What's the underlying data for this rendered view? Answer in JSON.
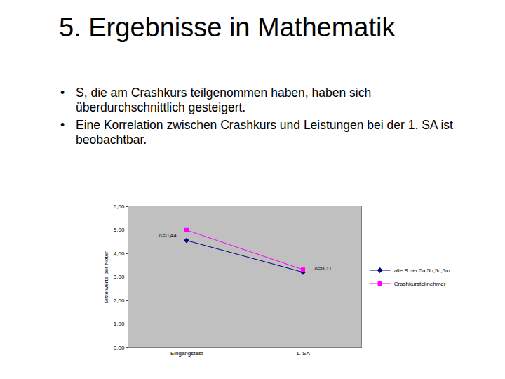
{
  "slide": {
    "title": "5. Ergebnisse in Mathematik",
    "bullets": [
      "S, die am Crashkurs teilgenommen haben, haben sich überdurchschnittlich gesteigert.",
      "Eine Korrelation zwischen Crashkurs und Leistungen bei der 1. SA ist beobachtbar."
    ]
  },
  "chart_data": {
    "type": "line",
    "y_label": "Mittelwerte der Noten",
    "categories": [
      "Eingangstest",
      "1. SA"
    ],
    "series": [
      {
        "name": "alle S der 5a,5b,5c,5m",
        "color": "#000080",
        "marker": "diamond",
        "values": [
          4.55,
          3.2
        ]
      },
      {
        "name": "Crashkursteilnehmer",
        "color": "#ff00ff",
        "marker": "square",
        "values": [
          4.99,
          3.31
        ]
      }
    ],
    "ylim": [
      0,
      6
    ],
    "yticks": [
      {
        "value": 0,
        "label": "0,00"
      },
      {
        "value": 1,
        "label": "1,00"
      },
      {
        "value": 2,
        "label": "2,00"
      },
      {
        "value": 3,
        "label": "3,00"
      },
      {
        "value": 4,
        "label": "4,00"
      },
      {
        "value": 5,
        "label": "5,00"
      },
      {
        "value": 6,
        "label": "6,00"
      }
    ],
    "annotations": [
      {
        "text": "Δ=0,44",
        "x": "Eingangstest",
        "y": 4.77
      },
      {
        "text": "Δ=0,11",
        "x": "1. SA",
        "y": 3.35
      }
    ],
    "grid": false,
    "legend": "right"
  }
}
